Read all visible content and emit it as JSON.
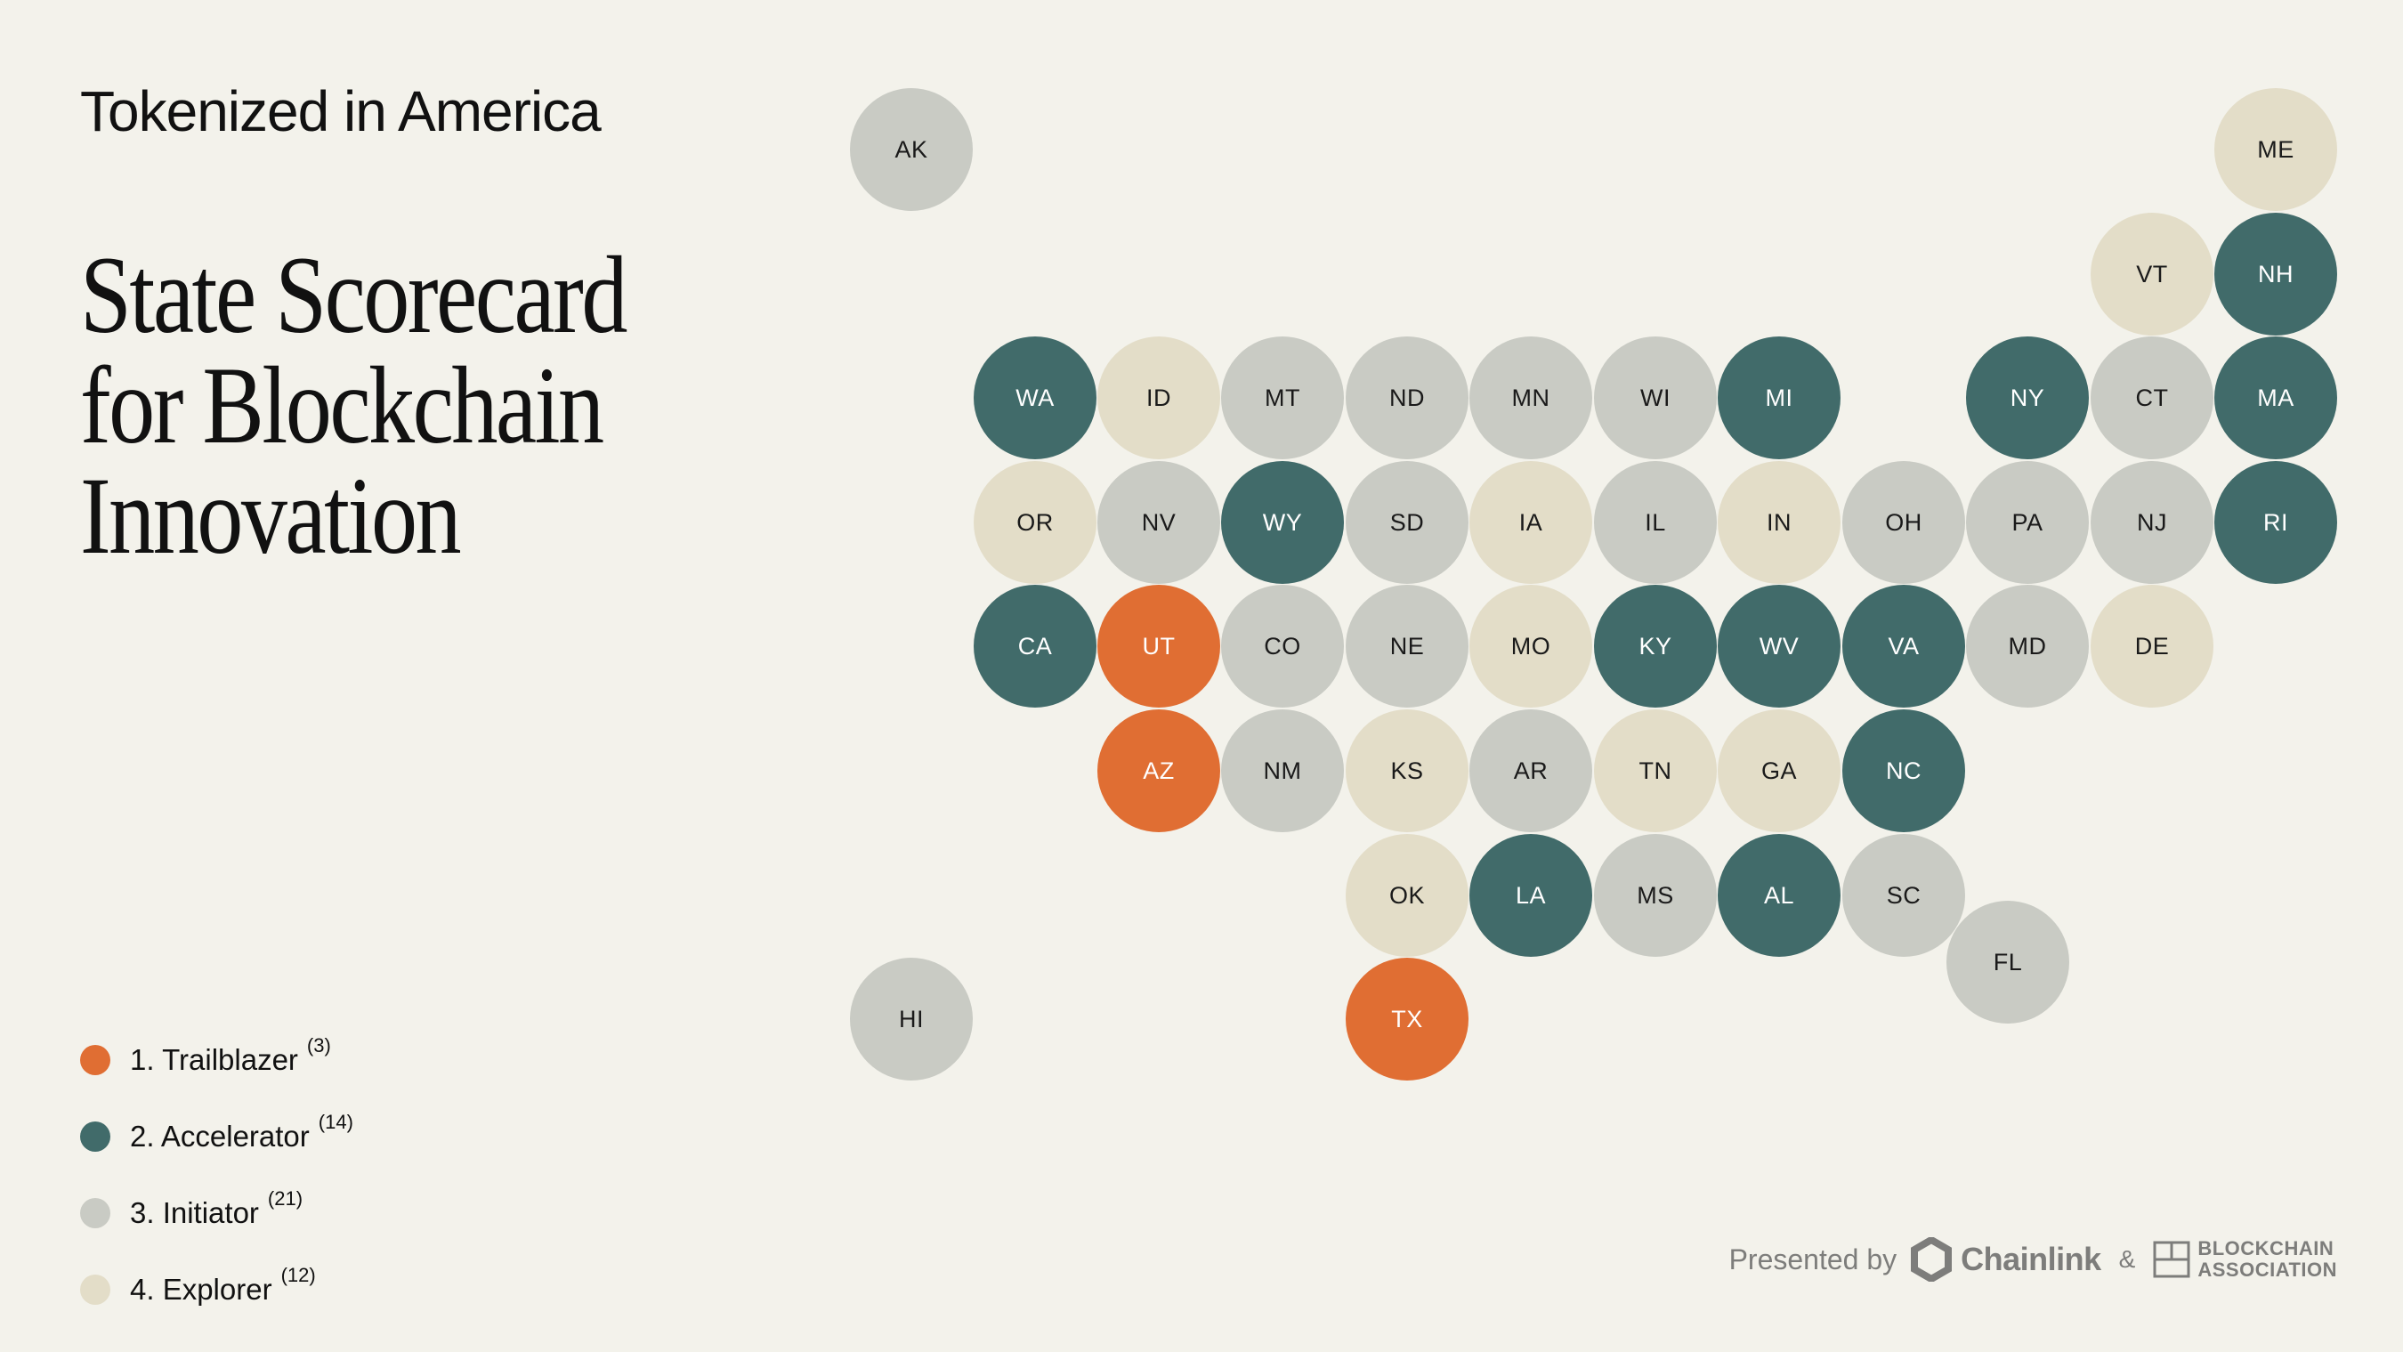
{
  "header": {
    "eyebrow": "Tokenized in America",
    "title_lines": [
      "State Scorecard",
      "for Blockchain",
      "Innovation"
    ]
  },
  "colors": {
    "background": "#f3f2eb",
    "trailblazer": "#e06e33",
    "accelerator": "#416b6a",
    "initiator": "#c9cbc4",
    "explorer": "#e3ddc8"
  },
  "legend": [
    {
      "label": "1. Trailblazer",
      "count": "(3)",
      "tier": 1
    },
    {
      "label": "2. Accelerator",
      "count": "(14)",
      "tier": 2
    },
    {
      "label": "3. Initiator",
      "count": "(21)",
      "tier": 3
    },
    {
      "label": "4. Explorer",
      "count": "(12)",
      "tier": 4
    }
  ],
  "states": [
    {
      "abbr": "AK",
      "tier": 3
    },
    {
      "abbr": "ME",
      "tier": 4
    },
    {
      "abbr": "VT",
      "tier": 4
    },
    {
      "abbr": "NH",
      "tier": 2
    },
    {
      "abbr": "WA",
      "tier": 2
    },
    {
      "abbr": "ID",
      "tier": 4
    },
    {
      "abbr": "MT",
      "tier": 3
    },
    {
      "abbr": "ND",
      "tier": 3
    },
    {
      "abbr": "MN",
      "tier": 3
    },
    {
      "abbr": "WI",
      "tier": 3
    },
    {
      "abbr": "MI",
      "tier": 2
    },
    {
      "abbr": "NY",
      "tier": 2
    },
    {
      "abbr": "CT",
      "tier": 3
    },
    {
      "abbr": "MA",
      "tier": 2
    },
    {
      "abbr": "OR",
      "tier": 4
    },
    {
      "abbr": "NV",
      "tier": 3
    },
    {
      "abbr": "WY",
      "tier": 2
    },
    {
      "abbr": "SD",
      "tier": 3
    },
    {
      "abbr": "IA",
      "tier": 4
    },
    {
      "abbr": "IL",
      "tier": 3
    },
    {
      "abbr": "IN",
      "tier": 4
    },
    {
      "abbr": "OH",
      "tier": 3
    },
    {
      "abbr": "PA",
      "tier": 3
    },
    {
      "abbr": "NJ",
      "tier": 3
    },
    {
      "abbr": "RI",
      "tier": 2
    },
    {
      "abbr": "CA",
      "tier": 2
    },
    {
      "abbr": "UT",
      "tier": 1
    },
    {
      "abbr": "CO",
      "tier": 3
    },
    {
      "abbr": "NE",
      "tier": 3
    },
    {
      "abbr": "MO",
      "tier": 4
    },
    {
      "abbr": "KY",
      "tier": 2
    },
    {
      "abbr": "WV",
      "tier": 2
    },
    {
      "abbr": "VA",
      "tier": 2
    },
    {
      "abbr": "MD",
      "tier": 3
    },
    {
      "abbr": "DE",
      "tier": 4
    },
    {
      "abbr": "AZ",
      "tier": 1
    },
    {
      "abbr": "NM",
      "tier": 3
    },
    {
      "abbr": "KS",
      "tier": 4
    },
    {
      "abbr": "AR",
      "tier": 3
    },
    {
      "abbr": "TN",
      "tier": 4
    },
    {
      "abbr": "GA",
      "tier": 4
    },
    {
      "abbr": "NC",
      "tier": 2
    },
    {
      "abbr": "OK",
      "tier": 4
    },
    {
      "abbr": "LA",
      "tier": 2
    },
    {
      "abbr": "MS",
      "tier": 3
    },
    {
      "abbr": "AL",
      "tier": 2
    },
    {
      "abbr": "SC",
      "tier": 3
    },
    {
      "abbr": "FL",
      "tier": 3
    },
    {
      "abbr": "HI",
      "tier": 3
    },
    {
      "abbr": "TX",
      "tier": 1
    }
  ],
  "footer": {
    "presented_by": "Presented by",
    "chainlink": "Chainlink",
    "ampersand": "&",
    "ba_line1": "BLOCKCHAIN",
    "ba_line2": "ASSOCIATION",
    "chainlink_icon": "hexagon-logo-icon",
    "ba_icon": "blockchain-association-logo-icon"
  }
}
